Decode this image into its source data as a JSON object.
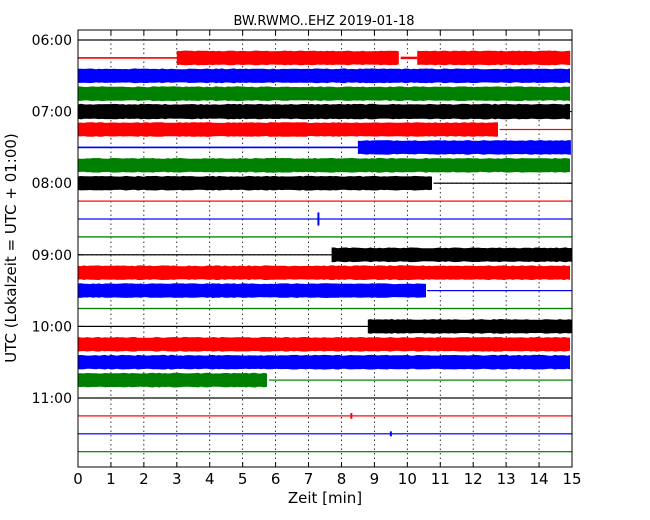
{
  "chart_data": {
    "type": "line",
    "title": "BW.RWMO..EHZ 2019-01-18",
    "xlabel": "Zeit  [min]",
    "ylabel": "UTC (Lokalzeit = UTC + 01:00)",
    "xlim": [
      0,
      15
    ],
    "x_ticks": [
      "0",
      "1",
      "2",
      "3",
      "4",
      "5",
      "6",
      "7",
      "8",
      "9",
      "10",
      "11",
      "12",
      "13",
      "14",
      "15"
    ],
    "y_tick_labels": [
      "06:00",
      "07:00",
      "08:00",
      "09:00",
      "10:00",
      "11:00"
    ],
    "grid": true,
    "colors": [
      "#000000",
      "#ff0000",
      "#0000ff",
      "#008000"
    ],
    "trace_start_minutes_after_0600": 0,
    "trace_interval_minutes": 15,
    "traces": [
      {
        "time": "06:00",
        "color": "#000000",
        "segments": [
          [
            0,
            15,
            0.05
          ]
        ]
      },
      {
        "time": "06:15",
        "color": "#ff0000",
        "segments": [
          [
            0,
            3,
            0.1
          ],
          [
            3,
            9.8,
            0.9
          ],
          [
            9.8,
            10.3,
            0.15
          ],
          [
            10.3,
            15,
            0.9
          ]
        ]
      },
      {
        "time": "06:30",
        "color": "#0000ff",
        "segments": [
          [
            0,
            15,
            0.9
          ]
        ]
      },
      {
        "time": "06:45",
        "color": "#008000",
        "segments": [
          [
            0,
            15,
            0.9
          ]
        ]
      },
      {
        "time": "07:00",
        "color": "#000000",
        "segments": [
          [
            0,
            15,
            0.95
          ]
        ]
      },
      {
        "time": "07:15",
        "color": "#ff0000",
        "segments": [
          [
            0,
            12.8,
            0.9
          ],
          [
            12.8,
            15,
            0.05
          ]
        ]
      },
      {
        "time": "07:30",
        "color": "#0000ff",
        "segments": [
          [
            0,
            8.5,
            0.1
          ],
          [
            8.5,
            15,
            0.9
          ]
        ]
      },
      {
        "time": "07:45",
        "color": "#008000",
        "segments": [
          [
            0,
            15,
            0.9
          ]
        ]
      },
      {
        "time": "08:00",
        "color": "#000000",
        "segments": [
          [
            0,
            10.8,
            0.9
          ],
          [
            10.8,
            15,
            0.05
          ]
        ]
      },
      {
        "time": "08:15",
        "color": "#ff0000",
        "segments": [
          [
            0,
            15,
            0.06
          ]
        ]
      },
      {
        "time": "08:30",
        "color": "#0000ff",
        "segments": [
          [
            0,
            15,
            0.06
          ]
        ],
        "spikes": [
          [
            7.3,
            0.8
          ]
        ]
      },
      {
        "time": "08:45",
        "color": "#008000",
        "segments": [
          [
            0,
            15,
            0.08
          ]
        ]
      },
      {
        "time": "09:00",
        "color": "#000000",
        "segments": [
          [
            0,
            7.7,
            0.05
          ],
          [
            7.7,
            15,
            0.9
          ]
        ]
      },
      {
        "time": "09:15",
        "color": "#ff0000",
        "segments": [
          [
            0,
            15,
            0.9
          ]
        ]
      },
      {
        "time": "09:30",
        "color": "#0000ff",
        "segments": [
          [
            0,
            10.6,
            0.9
          ],
          [
            10.6,
            15,
            0.05
          ]
        ]
      },
      {
        "time": "09:45",
        "color": "#008000",
        "segments": [
          [
            0,
            15,
            0.08
          ]
        ]
      },
      {
        "time": "10:00",
        "color": "#000000",
        "segments": [
          [
            0,
            8.8,
            0.05
          ],
          [
            8.8,
            15,
            0.9
          ]
        ]
      },
      {
        "time": "10:15",
        "color": "#ff0000",
        "segments": [
          [
            0,
            15,
            0.9
          ]
        ]
      },
      {
        "time": "10:30",
        "color": "#0000ff",
        "segments": [
          [
            0,
            15,
            0.9
          ]
        ]
      },
      {
        "time": "10:45",
        "color": "#008000",
        "segments": [
          [
            0,
            5.8,
            0.9
          ],
          [
            5.8,
            15,
            0.06
          ]
        ]
      },
      {
        "time": "11:00",
        "color": "#000000",
        "segments": [
          [
            0,
            15,
            0.05
          ]
        ]
      },
      {
        "time": "11:15",
        "color": "#ff0000",
        "segments": [
          [
            0,
            15,
            0.05
          ]
        ],
        "spikes": [
          [
            8.3,
            0.35
          ]
        ]
      },
      {
        "time": "11:30",
        "color": "#0000ff",
        "segments": [
          [
            0,
            15,
            0.05
          ]
        ],
        "spikes": [
          [
            9.5,
            0.3
          ]
        ]
      },
      {
        "time": "11:45",
        "color": "#008000",
        "segments": [
          [
            0,
            15,
            0.06
          ]
        ]
      }
    ]
  }
}
